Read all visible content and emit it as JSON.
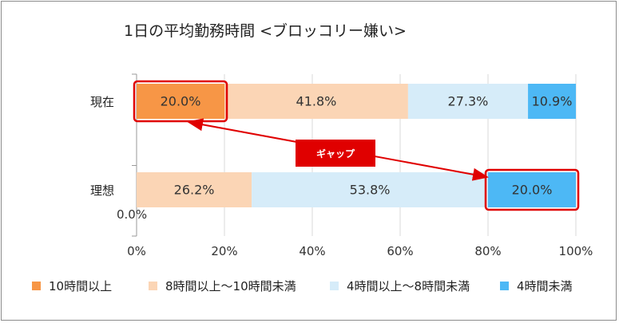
{
  "chart_data": {
    "type": "bar",
    "orientation": "horizontal",
    "stacked": true,
    "title": "1日の平均勤務時間 <ブロッコリー嫌い>",
    "categories": [
      "現在",
      "理想"
    ],
    "series": [
      {
        "name": "10時間以上",
        "color": "#f79646",
        "values": [
          20.0,
          0.0
        ],
        "labels": [
          "20.0%",
          "0.0%"
        ]
      },
      {
        "name": "8時間以上〜10時間未満",
        "color": "#fbd5b5",
        "values": [
          41.8,
          26.2
        ],
        "labels": [
          "41.8%",
          "26.2%"
        ]
      },
      {
        "name": "4時間以上〜8時間未満",
        "color": "#d6ecf9",
        "values": [
          27.3,
          53.8
        ],
        "labels": [
          "27.3%",
          "53.8%"
        ]
      },
      {
        "name": "4時間未満",
        "color": "#4db8f5",
        "values": [
          10.9,
          20.0
        ],
        "labels": [
          "10.9%",
          "20.0%"
        ]
      }
    ],
    "x_ticks": [
      "0%",
      "20%",
      "40%",
      "60%",
      "80%",
      "100%"
    ],
    "xlim": [
      0,
      100
    ],
    "grid": true,
    "legend_position": "bottom",
    "annotation": {
      "text": "ギャップ",
      "color": "#e00000"
    }
  }
}
